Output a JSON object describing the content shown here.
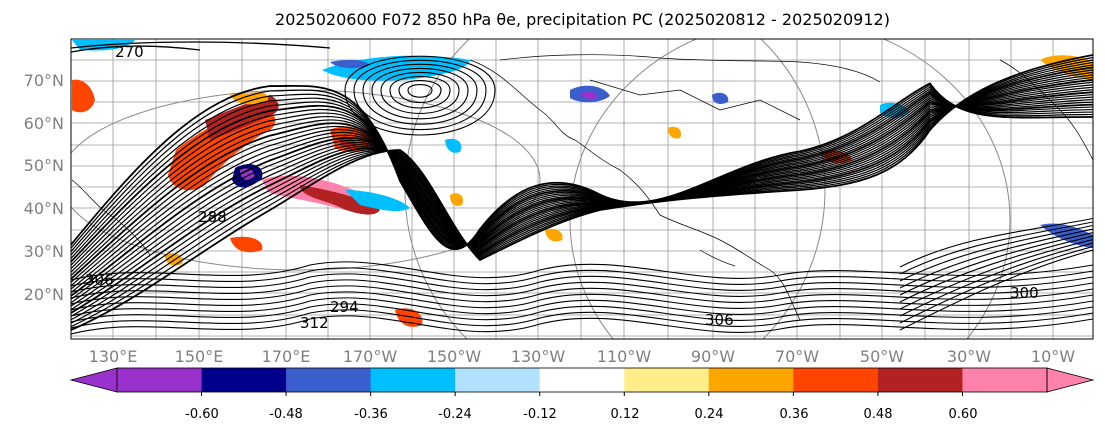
{
  "title": "2025020600 F072 850 hPa θe, precipitation PC (2025020812 - 2025020912)",
  "map": {
    "lat_labels": [
      "70°N",
      "60°N",
      "50°N",
      "40°N",
      "30°N",
      "20°N"
    ],
    "lon_labels": [
      "130°E",
      "150°E",
      "170°E",
      "170°W",
      "150°W",
      "130°W",
      "110°W",
      "90°W",
      "70°W",
      "50°W",
      "30°W",
      "10°W"
    ],
    "contour_labels": [
      "270",
      "288",
      "306",
      "294",
      "300",
      "312",
      "306"
    ]
  },
  "colorbar": {
    "colors": [
      "#9932cc",
      "#00008b",
      "#3a5fcd",
      "#00bfff",
      "#b0e2ff",
      "#ffffff",
      "#ffec8b",
      "#ffa500",
      "#ff4500",
      "#b22222",
      "#ff82ab"
    ],
    "tick_labels": [
      "-0.60",
      "-0.48",
      "-0.36",
      "-0.24",
      "-0.12",
      "0.12",
      "0.24",
      "0.36",
      "0.48",
      "0.60"
    ]
  }
}
